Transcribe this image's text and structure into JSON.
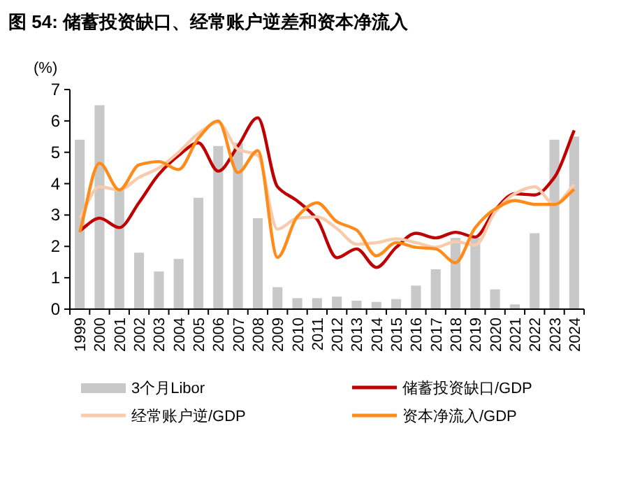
{
  "chart_data": {
    "type": "line",
    "title": "图 54: 储蓄投资缺口、经常账户逆差和资本净流入",
    "ylabel": "(%)",
    "categories": [
      "1999",
      "2000",
      "2001",
      "2002",
      "2003",
      "2004",
      "2005",
      "2006",
      "2007",
      "2008",
      "2009",
      "2010",
      "2011",
      "2012",
      "2013",
      "2014",
      "2015",
      "2016",
      "2017",
      "2018",
      "2019",
      "2020",
      "2021",
      "2022",
      "2023",
      "2024"
    ],
    "series": [
      {
        "name": "3个月Libor",
        "type": "bar",
        "color": "#c8c8c8",
        "values": [
          5.4,
          6.5,
          3.8,
          1.8,
          1.2,
          1.6,
          3.55,
          5.2,
          5.3,
          2.9,
          0.7,
          0.35,
          0.35,
          0.4,
          0.27,
          0.23,
          0.32,
          0.75,
          1.27,
          2.27,
          2.27,
          0.63,
          0.15,
          2.42,
          5.4,
          5.5
        ]
      },
      {
        "name": "储蓄投资缺口/GDP",
        "color": "#c00000",
        "values": [
          2.5,
          2.9,
          2.6,
          3.4,
          4.3,
          4.9,
          5.3,
          4.4,
          5.2,
          6.1,
          3.9,
          3.45,
          2.86,
          1.64,
          1.92,
          1.33,
          1.97,
          2.42,
          2.27,
          2.45,
          2.3,
          3.16,
          3.68,
          3.64,
          4.2,
          5.7
        ]
      },
      {
        "name": "经常账户逆/GDP",
        "color": "#f8cbad",
        "values": [
          2.9,
          3.9,
          3.8,
          4.2,
          4.5,
          5.0,
          5.6,
          5.95,
          5.1,
          4.9,
          2.55,
          2.9,
          2.94,
          2.57,
          2.07,
          2.12,
          2.24,
          2.12,
          1.97,
          2.15,
          2.04,
          3.09,
          3.68,
          3.9,
          3.34,
          3.98
        ]
      },
      {
        "name": "资本净流入/GDP",
        "color": "#ff8c1a",
        "values": [
          2.45,
          4.65,
          3.8,
          4.6,
          4.7,
          4.45,
          5.45,
          6.0,
          4.35,
          5.05,
          1.65,
          2.95,
          3.39,
          2.79,
          2.52,
          1.7,
          2.12,
          1.97,
          1.92,
          1.48,
          2.6,
          3.19,
          3.46,
          3.34,
          3.34,
          3.82
        ]
      }
    ],
    "ylim": [
      0,
      7
    ],
    "yticks": [
      0,
      1,
      2,
      3,
      4,
      5,
      6,
      7
    ],
    "grid": false,
    "legend": "bottom"
  }
}
